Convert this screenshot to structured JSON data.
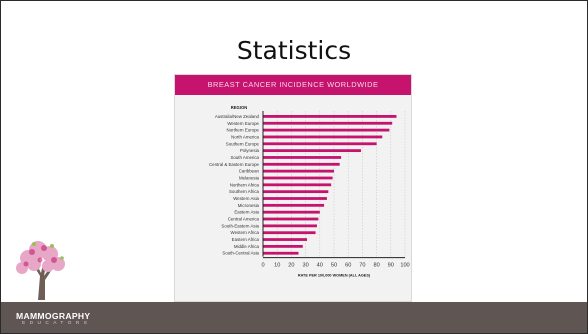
{
  "slide": {
    "title": "Statistics",
    "brand": "MAMMOGRAPHY",
    "brand_sub": "EDUCATORS"
  },
  "chart_data": {
    "type": "bar",
    "orientation": "horizontal",
    "title": "BREAST CANCER INCIDENCE WORLDWIDE",
    "category_header": "REGION",
    "xlabel": "RATE PER 100,000 WOMEN (ALL AGES)",
    "xlim": [
      0,
      100
    ],
    "xticks": [
      0,
      10,
      20,
      30,
      40,
      50,
      60,
      70,
      80,
      90,
      100
    ],
    "grid": "vertical dashed",
    "bar_color": "#c5136e",
    "categories": [
      "Australia/New Zealand",
      "Western Europe",
      "Northern Europe",
      "North America",
      "Southern Europe",
      "Polynesia",
      "South America",
      "Central & Eastern Europe",
      "Caribbean",
      "Melanesia",
      "Northern Africa",
      "Southern Africa",
      "Western Asia",
      "Micronesia",
      "Eastern Asia",
      "Central America",
      "South-Eastern Asia",
      "Western Africa",
      "Eastern Africa",
      "Middle Africa",
      "South-Central Asia"
    ],
    "values": [
      94,
      91,
      89,
      84,
      80,
      69,
      55,
      54,
      50,
      49,
      48,
      46,
      45,
      43,
      40,
      39,
      38,
      37,
      31,
      28,
      25
    ]
  }
}
